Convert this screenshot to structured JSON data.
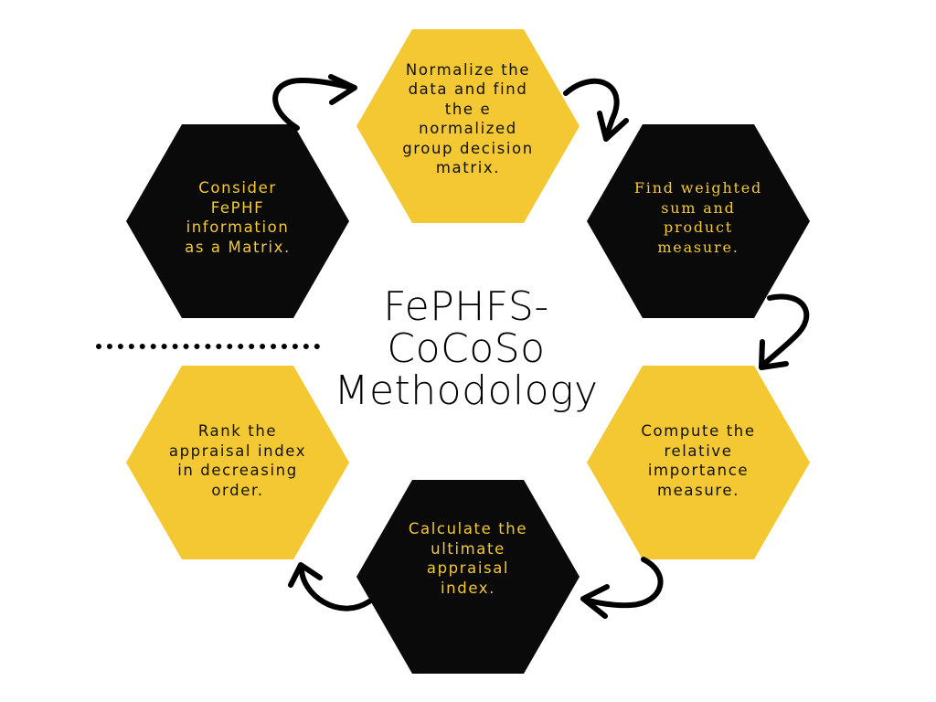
{
  "colors": {
    "yellow": "#f3c832",
    "black": "#0a0a0a",
    "background": "#ffffff"
  },
  "title": "FePHFS-\nCoCoSo\nMethodology",
  "steps": [
    {
      "id": "normalize",
      "text": "Normalize the\ndata and find\nthe e\nnormalized\ngroup decision\nmatrix.",
      "fill": "yellow"
    },
    {
      "id": "weighted-sum",
      "text": "Find weighted\nsum and\nproduct\nmeasure.",
      "fill": "black"
    },
    {
      "id": "relative-importance",
      "text": "Compute the\nrelative\nimportance\nmeasure.",
      "fill": "yellow"
    },
    {
      "id": "ultimate-appraisal",
      "text": "Calculate the\nultimate\nappraisal\nindex.",
      "fill": "black"
    },
    {
      "id": "rank",
      "text": "Rank the\nappraisal index\nin decreasing\norder.",
      "fill": "yellow"
    },
    {
      "id": "consider-matrix",
      "text": "Consider\nFePHF\ninformation\nas a Matrix.",
      "fill": "black"
    }
  ],
  "connector_icons": [
    "curved-arrow-icon",
    "curved-arrow-icon",
    "curved-arrow-icon",
    "curved-arrow-icon",
    "curved-arrow-icon"
  ]
}
